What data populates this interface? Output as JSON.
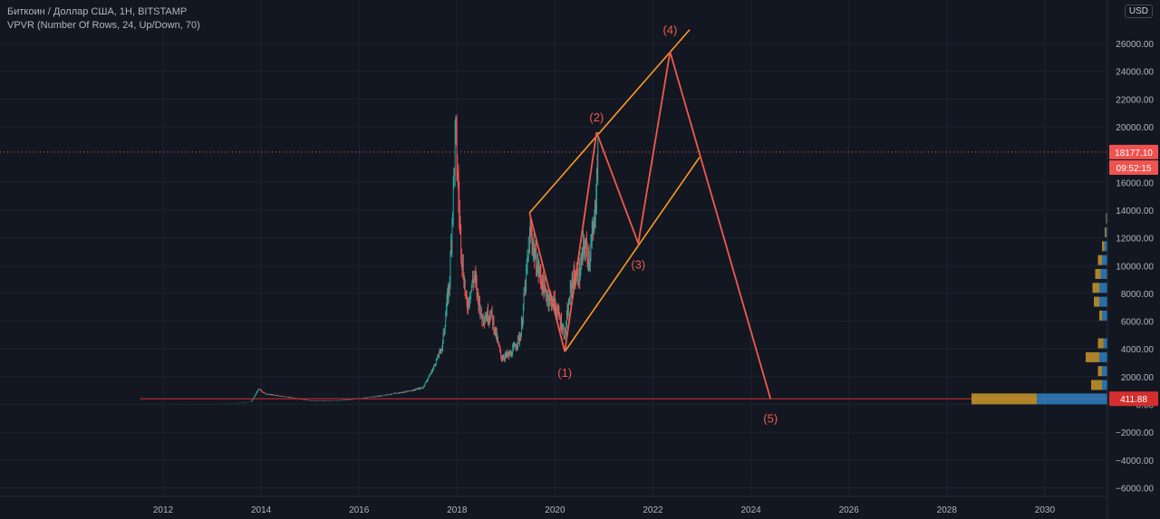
{
  "header": {
    "title": "Биткоин / Доллар США, 1Н, BITSTAMP",
    "indicator": "VPVR (Number Of Rows, 24, Up/Down, 70)",
    "currency": "USD"
  },
  "colors": {
    "background": "#131722",
    "grid": "#1e2230",
    "axis_text": "#b2b5be",
    "candle_up": "#26a69a",
    "candle_down": "#ef5350",
    "wave_line": "#f05a4a",
    "channel_line": "#ff9a1f",
    "label_red": "#f05a4a",
    "support_line": "#d32f2f",
    "vp_up": "#2f7fc0",
    "vp_down": "#c8962a"
  },
  "chart_data": {
    "type": "line",
    "title": "Биткоин / Доллар США, 1Н, BITSTAMP",
    "xlabel": "",
    "ylabel": "",
    "xlim": [
      2011.0,
      2031.3
    ],
    "ylim": [
      -6600,
      27700
    ],
    "x_ticks": [
      2012,
      2014,
      2016,
      2018,
      2020,
      2022,
      2024,
      2026,
      2028,
      2030
    ],
    "x_tick_labels": [
      "2012",
      "2014",
      "2016",
      "2018",
      "2020",
      "2022",
      "2024",
      "2026",
      "2028",
      "2030"
    ],
    "y_ticks": [
      -6000,
      -4000,
      -2000,
      0,
      2000,
      4000,
      6000,
      8000,
      10000,
      12000,
      14000,
      16000,
      20000,
      22000,
      24000,
      26000
    ],
    "y_tick_labels": [
      "−6000.00",
      "−4000.00",
      "−2000.00",
      "0.00",
      "2000.00",
      "4000.00",
      "6000.00",
      "8000.00",
      "10000.00",
      "12000.00",
      "14000.00",
      "16000.00",
      "20000.00",
      "22000.00",
      "24000.00",
      "26000.00"
    ],
    "grid": true,
    "price_series": {
      "name": "BTCUSD",
      "points": [
        [
          2011.6,
          10
        ],
        [
          2012.0,
          6
        ],
        [
          2012.5,
          12
        ],
        [
          2013.0,
          20
        ],
        [
          2013.5,
          90
        ],
        [
          2013.8,
          200
        ],
        [
          2013.95,
          1100
        ],
        [
          2014.1,
          750
        ],
        [
          2014.5,
          550
        ],
        [
          2015.0,
          280
        ],
        [
          2015.5,
          250
        ],
        [
          2016.0,
          420
        ],
        [
          2016.5,
          650
        ],
        [
          2017.0,
          950
        ],
        [
          2017.3,
          1200
        ],
        [
          2017.5,
          2500
        ],
        [
          2017.7,
          4200
        ],
        [
          2017.85,
          9000
        ],
        [
          2017.97,
          19600
        ],
        [
          2018.05,
          13500
        ],
        [
          2018.1,
          10500
        ],
        [
          2018.2,
          7000
        ],
        [
          2018.35,
          9300
        ],
        [
          2018.5,
          6300
        ],
        [
          2018.7,
          6500
        ],
        [
          2018.9,
          3400
        ],
        [
          2019.1,
          3600
        ],
        [
          2019.3,
          5000
        ],
        [
          2019.5,
          12500
        ],
        [
          2019.6,
          10500
        ],
        [
          2019.8,
          8000
        ],
        [
          2020.0,
          7200
        ],
        [
          2020.2,
          5000
        ],
        [
          2020.35,
          9000
        ],
        [
          2020.5,
          9300
        ],
        [
          2020.6,
          11500
        ],
        [
          2020.7,
          10500
        ],
        [
          2020.8,
          13000
        ],
        [
          2020.88,
          18100
        ]
      ]
    },
    "wave_path": {
      "name": "",
      "points": [
        [
          2019.48,
          13800
        ],
        [
          2020.2,
          3800
        ],
        [
          2020.85,
          19600
        ],
        [
          2021.7,
          11600
        ],
        [
          2022.35,
          25400
        ],
        [
          2024.4,
          400
        ]
      ]
    },
    "channel_lines": [
      {
        "points": [
          [
            2019.48,
            13800
          ],
          [
            2022.75,
            27000
          ]
        ]
      },
      {
        "points": [
          [
            2020.2,
            3800
          ],
          [
            2022.95,
            17800
          ]
        ]
      }
    ],
    "wave_labels": [
      {
        "text": "(1)",
        "x": 2020.2,
        "y": 2000
      },
      {
        "text": "(2)",
        "x": 2020.85,
        "y": 20400
      },
      {
        "text": "(3)",
        "x": 2021.7,
        "y": 9800
      },
      {
        "text": "(4)",
        "x": 2022.35,
        "y": 26700
      },
      {
        "text": "(5)",
        "x": 2024.4,
        "y": -1300
      }
    ],
    "support_level": 411.88,
    "last_price": 18177.1,
    "last_price_line": 18177.1,
    "price_labels": [
      {
        "text": "18177.10",
        "value": 18177.1,
        "kind": "price"
      },
      {
        "text": "09:52:15",
        "value": 17060,
        "kind": "timer"
      },
      {
        "text": "411.88",
        "value": 411.88,
        "kind": "level"
      }
    ],
    "volume_profile": [
      {
        "price": 400,
        "up": 1,
        "down": 1
      },
      {
        "price": 1400,
        "up": 0.02,
        "down": 0.04
      },
      {
        "price": 2400,
        "up": 0.02,
        "down": 0.015
      },
      {
        "price": 3400,
        "up": 0.03,
        "down": 0.05
      },
      {
        "price": 4400,
        "up": 0.015,
        "down": 0.02
      },
      {
        "price": 6400,
        "up": 0.02,
        "down": 0.01
      },
      {
        "price": 7400,
        "up": 0.03,
        "down": 0.02
      },
      {
        "price": 8400,
        "up": 0.03,
        "down": 0.025
      },
      {
        "price": 9400,
        "up": 0.025,
        "down": 0.02
      },
      {
        "price": 10400,
        "up": 0.02,
        "down": 0.015
      },
      {
        "price": 11400,
        "up": 0.012,
        "down": 0.008
      },
      {
        "price": 12400,
        "up": 0.006,
        "down": 0.004
      },
      {
        "price": 13400,
        "up": 0.004,
        "down": 0.002
      }
    ]
  }
}
